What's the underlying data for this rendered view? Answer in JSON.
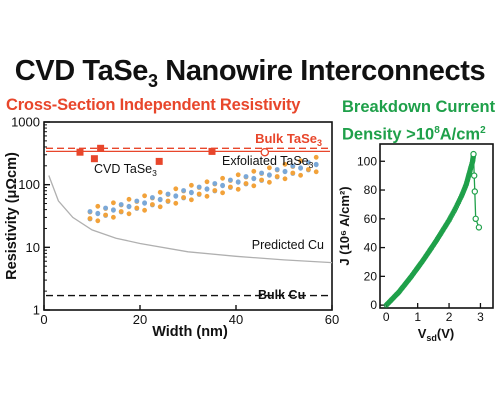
{
  "title_main": "CVD TaSe",
  "title_sub": "3",
  "title_rest": " Nanowire Interconnects",
  "left_subtitle": "Cross-Section Independent Resistivity",
  "right_subtitle_line1": "Breakdown Current",
  "right_subtitle_line2_pre": "Density >10",
  "right_subtitle_line2_sup": "8",
  "right_subtitle_line2_post": "A/cm",
  "right_subtitle_line2_sup2": "2",
  "colors": {
    "red": "#e8462b",
    "green": "#1fa04a",
    "orange_atom": "#f2a23a",
    "blue_atom": "#7aa8d8",
    "grey_curve": "#b0b0b0"
  },
  "chart_data": [
    {
      "type": "scatter",
      "xlabel": "Width (nm)",
      "ylabel": "Resistivity (μΩcm)",
      "xlim": [
        0,
        60
      ],
      "ylim": [
        1,
        1000
      ],
      "yscale": "log",
      "x_ticks": [
        "0",
        "20",
        "40",
        "60"
      ],
      "y_ticks": [
        "1",
        "10",
        "100",
        "1000"
      ],
      "series": [
        {
          "name": "CVD TaSe3",
          "marker": "filled-square",
          "x": [
            7.5,
            10.5,
            11.8,
            24,
            35
          ],
          "y": [
            330,
            260,
            380,
            235,
            340
          ]
        },
        {
          "name": "Exfoliated TaSe3",
          "marker": "open-circle",
          "x": [
            46
          ],
          "y": [
            330
          ]
        }
      ],
      "reference_lines": [
        {
          "name": "Bulk TaSe3",
          "value": 380,
          "style": "dashed"
        },
        {
          "name": "Bulk Cu",
          "value": 1.7,
          "style": "dashed"
        }
      ],
      "curves": [
        {
          "name": "Predicted Cu",
          "x": [
            1,
            3,
            6,
            10,
            15,
            20,
            30,
            40,
            50,
            60
          ],
          "y": [
            140,
            55,
            30,
            19,
            14,
            11.5,
            8.5,
            7.2,
            6.3,
            5.7
          ]
        }
      ],
      "annotations": [
        "Bulk TaSe",
        "3",
        "CVD TaSe",
        "3",
        "Exfoliated TaSe",
        "3",
        "Predicted Cu",
        "Bulk Cu"
      ]
    },
    {
      "type": "line",
      "xlabel_main": "V",
      "xlabel_sub": "sd",
      "xlabel_unit": "(V)",
      "ylabel": "J (10⁶ A/cm²)",
      "xlim": [
        -0.2,
        3.4
      ],
      "ylim": [
        -2,
        112
      ],
      "x_ticks": [
        "0",
        "1",
        "2",
        "3"
      ],
      "y_ticks": [
        "0",
        "20",
        "40",
        "60",
        "80",
        "100"
      ],
      "series": [
        {
          "name": "rise",
          "x": [
            0,
            0.2,
            0.4,
            0.6,
            0.8,
            1.0,
            1.2,
            1.4,
            1.6,
            1.8,
            2.0,
            2.2,
            2.4,
            2.55,
            2.65,
            2.75,
            2.78
          ],
          "y": [
            0,
            4.5,
            9,
            14.5,
            20,
            26,
            32,
            38.5,
            45,
            52,
            59,
            67,
            76,
            84,
            92,
            100,
            105
          ]
        },
        {
          "name": "breakdown",
          "x": [
            2.78,
            2.8,
            2.82,
            2.85,
            2.95
          ],
          "y": [
            105,
            90,
            79,
            60,
            54
          ]
        }
      ]
    }
  ]
}
